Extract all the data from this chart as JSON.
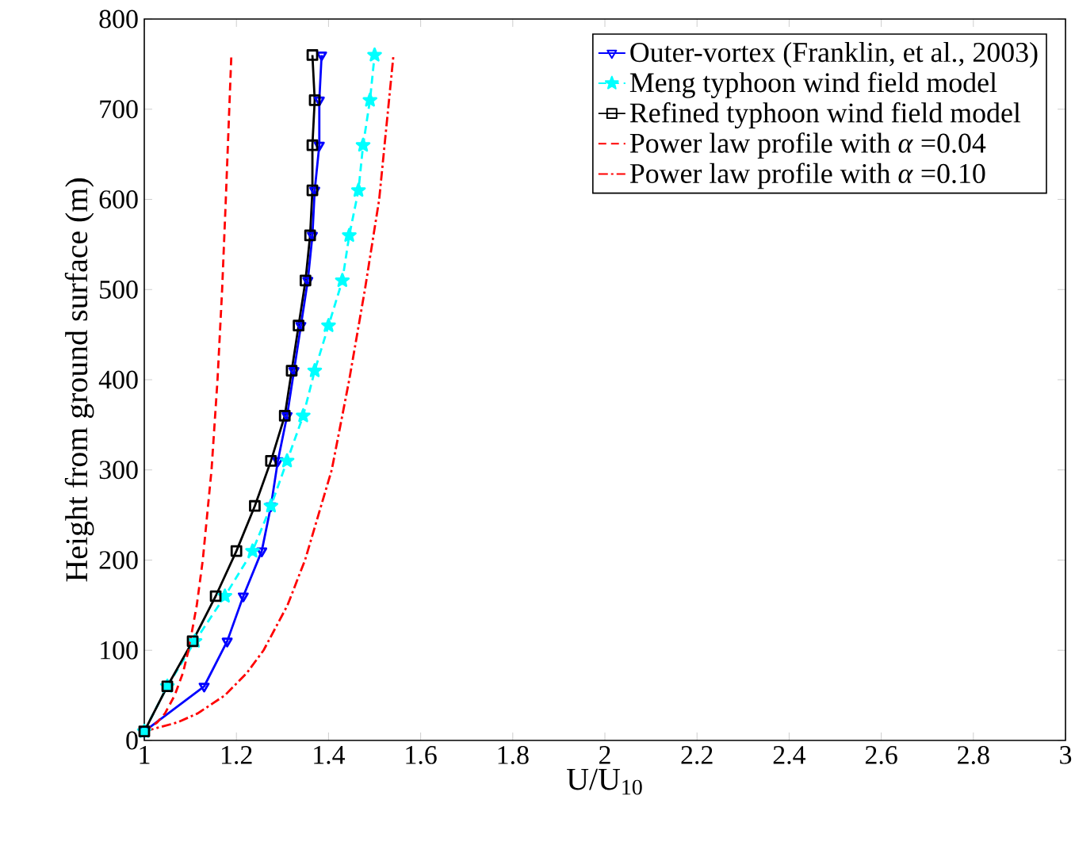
{
  "chart_data": {
    "type": "line",
    "xlabel": "U/U$_{10}$",
    "ylabel": "Height from ground surface (m)",
    "xlim": [
      1,
      3
    ],
    "ylim": [
      0,
      800
    ],
    "xticks": [
      1,
      1.2,
      1.4,
      1.6,
      1.8,
      2,
      2.2,
      2.4,
      2.6,
      2.8,
      3
    ],
    "yticks": [
      0,
      100,
      200,
      300,
      400,
      500,
      600,
      700,
      800
    ],
    "grid": false,
    "legend": "top right",
    "series": [
      {
        "name": "Outer-vortex (Franklin, et al., 2003)",
        "color": "#0000ff",
        "marker": "triangle",
        "line_style": "solid",
        "x": [
          1.0,
          1.13,
          1.18,
          1.215,
          1.255,
          1.275,
          1.29,
          1.31,
          1.325,
          1.34,
          1.355,
          1.365,
          1.37,
          1.38,
          1.38,
          1.385
        ],
        "values": [
          10,
          60,
          110,
          160,
          210,
          260,
          310,
          360,
          410,
          460,
          510,
          560,
          610,
          660,
          710,
          760
        ]
      },
      {
        "name": "Meng typhoon wind field model",
        "color": "#00ffff",
        "marker": "star",
        "line_style": "dashed",
        "x": [
          1.0,
          1.05,
          1.11,
          1.175,
          1.235,
          1.275,
          1.31,
          1.345,
          1.37,
          1.4,
          1.43,
          1.445,
          1.465,
          1.475,
          1.49,
          1.5
        ],
        "values": [
          10,
          60,
          110,
          160,
          210,
          260,
          310,
          360,
          410,
          460,
          510,
          560,
          610,
          660,
          710,
          760
        ]
      },
      {
        "name": "Refined typhoon wind field model",
        "color": "#000000",
        "marker": "square",
        "line_style": "solid",
        "x": [
          1.0,
          1.05,
          1.105,
          1.155,
          1.2,
          1.24,
          1.275,
          1.305,
          1.32,
          1.335,
          1.35,
          1.36,
          1.365,
          1.365,
          1.37,
          1.365
        ],
        "values": [
          10,
          60,
          110,
          160,
          210,
          260,
          310,
          360,
          410,
          460,
          510,
          560,
          610,
          660,
          710,
          760
        ]
      },
      {
        "name": "Power law profile with *α* =0.04",
        "color": "#ff0000",
        "marker": "none",
        "line_style": "dashed",
        "x": [
          1.0,
          1.028,
          1.045,
          1.066,
          1.084,
          1.096,
          1.114,
          1.127,
          1.146,
          1.159,
          1.169,
          1.177,
          1.189
        ],
        "values": [
          10,
          20,
          30,
          50,
          75,
          100,
          150,
          200,
          300,
          400,
          500,
          600,
          760
        ]
      },
      {
        "name": "Power law profile with *α* =0.10",
        "color": "#ff0000",
        "marker": "none",
        "line_style": "dashdot",
        "x": [
          1.0,
          1.072,
          1.116,
          1.175,
          1.223,
          1.259,
          1.311,
          1.349,
          1.407,
          1.445,
          1.479,
          1.51,
          1.541
        ],
        "values": [
          10,
          20,
          30,
          50,
          75,
          100,
          150,
          200,
          300,
          400,
          500,
          600,
          760
        ]
      }
    ]
  }
}
